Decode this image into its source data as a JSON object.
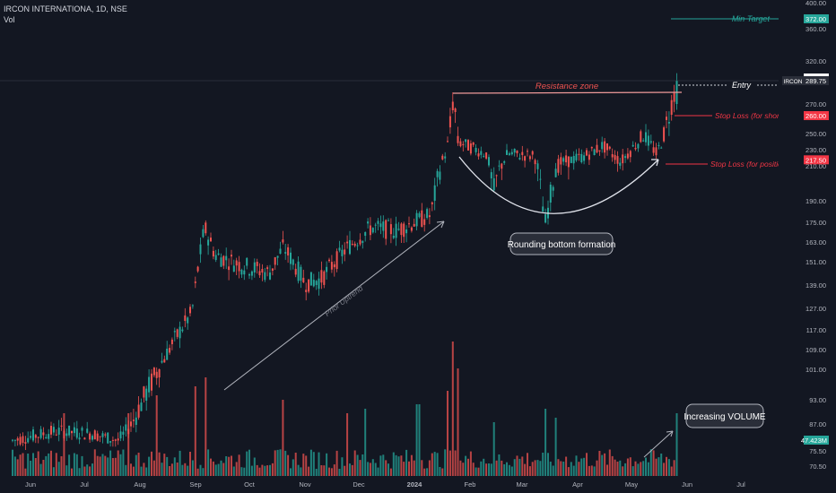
{
  "header": {
    "symbol_line": "IRCON INTERNATIONA, 1D, NSE",
    "volume_label": "Vol"
  },
  "chart_data": {
    "type": "candlestick",
    "price_axis_ticks": [
      "400.00",
      "360.00",
      "320.00",
      "292.00",
      "270.00",
      "250.00",
      "230.00",
      "210.00",
      "190.00",
      "175.00",
      "163.00",
      "151.00",
      "139.00",
      "127.00",
      "117.00",
      "109.00",
      "101.00",
      "93.00",
      "87.00",
      "81.00",
      "75.50",
      "70.50"
    ],
    "time_axis_ticks": [
      "Jun",
      "Jul",
      "Aug",
      "Sep",
      "Oct",
      "Nov",
      "Dec",
      "2024",
      "Feb",
      "Mar",
      "Apr",
      "May",
      "Jun",
      "Jul"
    ],
    "price_badges": [
      {
        "label": "372.00",
        "price": 372,
        "color": "#26a69a"
      },
      {
        "label": "292.00",
        "price": 292,
        "color": "#ffffff"
      },
      {
        "label": "289.75",
        "price": 289.75,
        "color": "#2a2e39",
        "ticker": "IRCON"
      },
      {
        "label": "260.00",
        "price": 260,
        "color": "#f23645"
      },
      {
        "label": "217.50",
        "price": 217.5,
        "color": "#f23645"
      }
    ],
    "volume_badge": {
      "label": "47.423M",
      "color": "#26a69a"
    },
    "annotations": {
      "min_target": "Min Target",
      "entry": "Entry",
      "resistance_zone": "Resistance zone",
      "stop_loss_short": "Stop Loss (for short duration)",
      "stop_loss_positional": "Stop Loss (for positional trade)",
      "rounding_bottom": "Rounding bottom formation",
      "prior_uptrend": "Prior Uptrend",
      "increasing_volume": "Increasing VOLUME"
    },
    "colors": {
      "up": "#26a69a",
      "down": "#ef5350",
      "background": "#131722",
      "stop_loss": "#f23645",
      "target": "#26a69a"
    },
    "price_anchors": [
      [
        "2023-05-22",
        80
      ],
      [
        "2023-06-15",
        84
      ],
      [
        "2023-07-05",
        83
      ],
      [
        "2023-07-20",
        80
      ],
      [
        "2023-08-10",
        100
      ],
      [
        "2023-08-30",
        125
      ],
      [
        "2023-09-06",
        172
      ],
      [
        "2023-09-12",
        155
      ],
      [
        "2023-09-25",
        150
      ],
      [
        "2023-10-12",
        145
      ],
      [
        "2023-10-20",
        160
      ],
      [
        "2023-11-01",
        140
      ],
      [
        "2023-11-10",
        142
      ],
      [
        "2023-11-25",
        160
      ],
      [
        "2023-12-08",
        172
      ],
      [
        "2023-12-22",
        170
      ],
      [
        "2024-01-10",
        180
      ],
      [
        "2024-01-19",
        230
      ],
      [
        "2024-01-23",
        278
      ],
      [
        "2024-01-25",
        240
      ],
      [
        "2024-02-10",
        225
      ],
      [
        "2024-02-14",
        195
      ],
      [
        "2024-02-22",
        225
      ],
      [
        "2024-03-08",
        222
      ],
      [
        "2024-03-14",
        175
      ],
      [
        "2024-03-20",
        212
      ],
      [
        "2024-04-05",
        222
      ],
      [
        "2024-04-15",
        235
      ],
      [
        "2024-04-25",
        215
      ],
      [
        "2024-05-08",
        248
      ],
      [
        "2024-05-15",
        225
      ],
      [
        "2024-05-27",
        289.75
      ]
    ]
  }
}
